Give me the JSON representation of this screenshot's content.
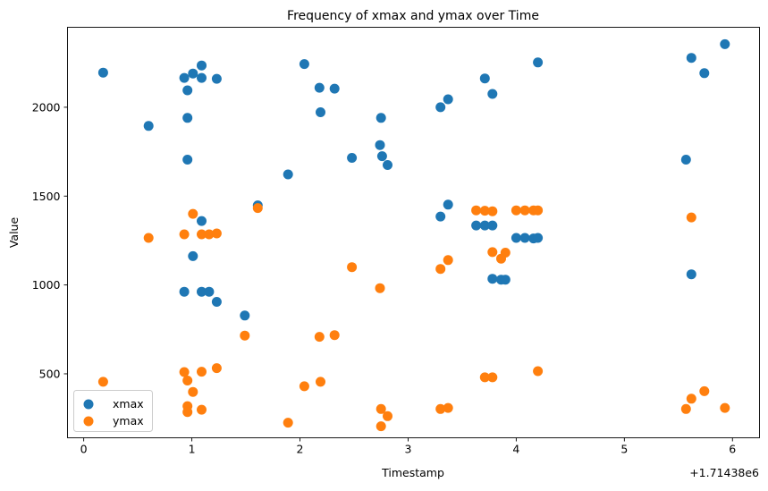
{
  "chart_data": {
    "type": "scatter",
    "title": "Frequency of xmax and ymax over Time",
    "xlabel": "Timestamp",
    "ylabel": "Value",
    "x_offset_label": "+1.71438e6",
    "xlim": [
      -0.15,
      6.25
    ],
    "ylim": [
      140,
      2450
    ],
    "x_ticks": [
      0,
      1,
      2,
      3,
      4,
      5,
      6
    ],
    "x_tick_labels": [
      "0",
      "1",
      "2",
      "3",
      "4",
      "5",
      "6"
    ],
    "y_ticks": [
      500,
      1000,
      1500,
      2000
    ],
    "y_tick_labels": [
      "500",
      "1000",
      "1500",
      "2000"
    ],
    "grid": false,
    "legend_position": "lower-left",
    "series": [
      {
        "name": "xmax",
        "color": "#1f77b4",
        "points": [
          [
            0.18,
            2195
          ],
          [
            0.6,
            1895
          ],
          [
            0.93,
            2165
          ],
          [
            0.96,
            2095
          ],
          [
            0.96,
            1940
          ],
          [
            0.96,
            1705
          ],
          [
            0.93,
            962
          ],
          [
            1.01,
            2190
          ],
          [
            1.01,
            1162
          ],
          [
            1.09,
            2235
          ],
          [
            1.09,
            2165
          ],
          [
            1.09,
            1360
          ],
          [
            1.09,
            962
          ],
          [
            1.16,
            962
          ],
          [
            1.23,
            2160
          ],
          [
            1.23,
            905
          ],
          [
            1.49,
            828
          ],
          [
            1.61,
            1448
          ],
          [
            1.89,
            1622
          ],
          [
            2.04,
            2243
          ],
          [
            2.18,
            2110
          ],
          [
            2.19,
            1972
          ],
          [
            2.32,
            2105
          ],
          [
            2.48,
            1715
          ],
          [
            2.74,
            1787
          ],
          [
            2.75,
            1940
          ],
          [
            2.76,
            1725
          ],
          [
            2.81,
            1675
          ],
          [
            3.3,
            2000
          ],
          [
            3.3,
            1385
          ],
          [
            3.37,
            2045
          ],
          [
            3.37,
            1452
          ],
          [
            3.63,
            1335
          ],
          [
            3.71,
            2162
          ],
          [
            3.71,
            1335
          ],
          [
            3.78,
            2075
          ],
          [
            3.78,
            1335
          ],
          [
            3.78,
            1035
          ],
          [
            3.86,
            1030
          ],
          [
            3.9,
            1030
          ],
          [
            4.0,
            1265
          ],
          [
            4.08,
            1265
          ],
          [
            4.16,
            1262
          ],
          [
            4.2,
            1265
          ],
          [
            4.2,
            2252
          ],
          [
            5.57,
            1705
          ],
          [
            5.62,
            2278
          ],
          [
            5.62,
            1060
          ],
          [
            5.74,
            2192
          ],
          [
            5.93,
            2355
          ]
        ]
      },
      {
        "name": "ymax",
        "color": "#ff7f0e",
        "points": [
          [
            0.18,
            455
          ],
          [
            0.6,
            1265
          ],
          [
            0.93,
            1285
          ],
          [
            0.93,
            510
          ],
          [
            0.96,
            462
          ],
          [
            0.96,
            318
          ],
          [
            0.96,
            285
          ],
          [
            1.01,
            1400
          ],
          [
            1.01,
            398
          ],
          [
            1.09,
            1285
          ],
          [
            1.09,
            512
          ],
          [
            1.09,
            298
          ],
          [
            1.16,
            1285
          ],
          [
            1.23,
            1290
          ],
          [
            1.23,
            532
          ],
          [
            1.49,
            715
          ],
          [
            1.61,
            1433
          ],
          [
            1.89,
            225
          ],
          [
            2.04,
            430
          ],
          [
            2.18,
            708
          ],
          [
            2.19,
            455
          ],
          [
            2.32,
            718
          ],
          [
            2.48,
            1100
          ],
          [
            2.74,
            982
          ],
          [
            2.75,
            302
          ],
          [
            2.75,
            205
          ],
          [
            2.81,
            262
          ],
          [
            3.3,
            1090
          ],
          [
            3.3,
            302
          ],
          [
            3.37,
            1140
          ],
          [
            3.37,
            308
          ],
          [
            3.63,
            1420
          ],
          [
            3.71,
            1418
          ],
          [
            3.71,
            480
          ],
          [
            3.78,
            1415
          ],
          [
            3.78,
            1185
          ],
          [
            3.78,
            480
          ],
          [
            3.86,
            1148
          ],
          [
            3.9,
            1182
          ],
          [
            4.0,
            1420
          ],
          [
            4.08,
            1420
          ],
          [
            4.16,
            1420
          ],
          [
            4.2,
            1420
          ],
          [
            4.2,
            515
          ],
          [
            5.57,
            302
          ],
          [
            5.62,
            1380
          ],
          [
            5.62,
            360
          ],
          [
            5.74,
            402
          ],
          [
            5.93,
            308
          ]
        ]
      }
    ]
  }
}
